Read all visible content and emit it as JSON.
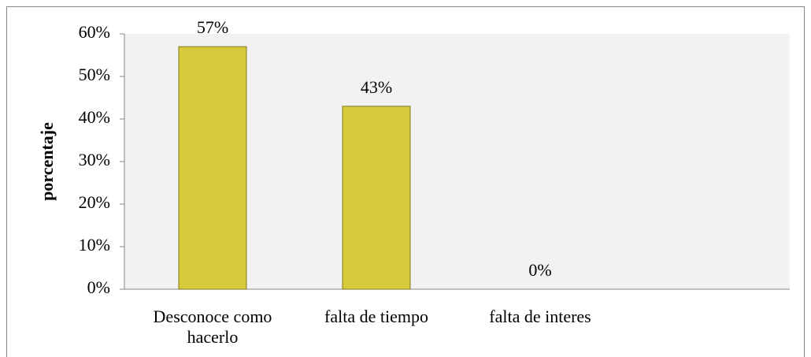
{
  "chart_data": {
    "type": "bar",
    "y_label": "porcentaje",
    "categories": [
      "Desconoce como hacerlo",
      "falta de tiempo",
      "falta de interes",
      null
    ],
    "values": [
      57,
      43,
      0,
      null
    ],
    "value_labels": [
      "57%",
      "43%",
      "0%",
      null
    ],
    "color": "#d6c93c",
    "ylim": [
      0,
      60
    ],
    "yticks": [
      {
        "value": 0,
        "label": "0%"
      },
      {
        "value": 10,
        "label": "10%"
      },
      {
        "value": 20,
        "label": "20%"
      },
      {
        "value": 30,
        "label": "30%"
      },
      {
        "value": 40,
        "label": "40%"
      },
      {
        "value": 50,
        "label": "50%"
      },
      {
        "value": 60,
        "label": "60%"
      }
    ],
    "grid": false
  }
}
